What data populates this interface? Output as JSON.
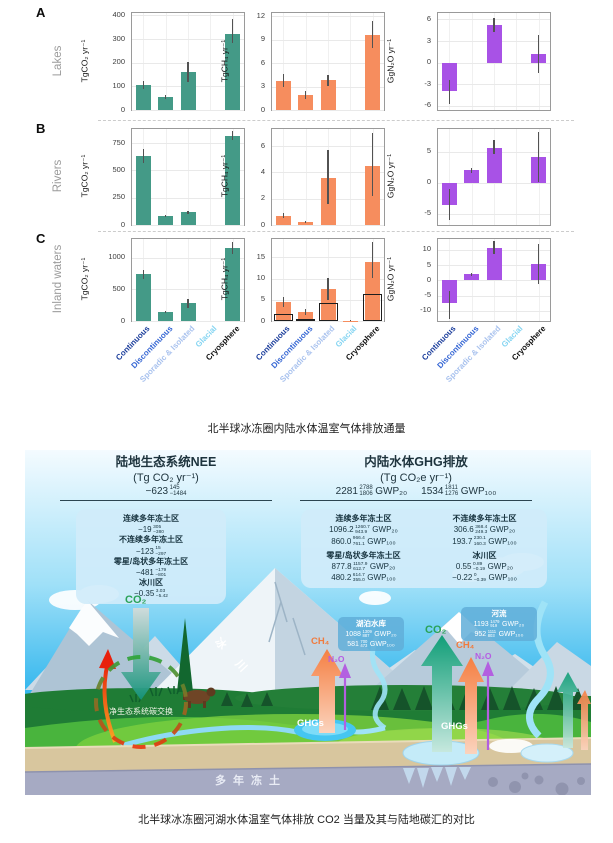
{
  "captions": {
    "top": "北半球冰冻圈内陆水体温室气体排放通量",
    "bottom": "北半球冰冻圈河湖水体温室气体排放 CO2 当量及其与陆地碳汇的对比"
  },
  "rows": [
    {
      "letter": "A",
      "label": "Lakes"
    },
    {
      "letter": "B",
      "label": "Rivers"
    },
    {
      "letter": "C",
      "label": "Inland waters"
    }
  ],
  "categories": {
    "labels": [
      "Continuous",
      "Discontinuous",
      "Sporadic & Isolated",
      "Glacial",
      "Cryosphere"
    ],
    "colors": [
      "#1c3e9c",
      "#3566d4",
      "#a9c2ee",
      "#86d5f2",
      "#111111"
    ]
  },
  "chart_data": [
    {
      "type": "bar",
      "row": "Lakes",
      "gas": "CO₂",
      "ylabel": "TgCO₂ yr⁻¹",
      "color": "#449a87",
      "ylim": [
        0,
        410
      ],
      "yticks": [
        0,
        100,
        200,
        300,
        400
      ],
      "values": [
        105,
        55,
        160,
        0,
        320
      ],
      "err_lo": [
        88,
        46,
        120,
        0,
        285
      ],
      "err_hi": [
        122,
        65,
        205,
        0,
        385
      ]
    },
    {
      "type": "bar",
      "row": "Lakes",
      "gas": "CH₄",
      "ylabel": "TgCH₄ yr⁻¹",
      "color": "#f68d5e",
      "ylim": [
        0,
        12.4
      ],
      "yticks": [
        0,
        3,
        6,
        9,
        12
      ],
      "values": [
        3.7,
        1.9,
        3.8,
        0,
        9.6
      ],
      "err_lo": [
        2.9,
        1.4,
        3.1,
        0,
        7.9
      ],
      "err_hi": [
        4.6,
        2.4,
        4.5,
        0,
        11.4
      ]
    },
    {
      "type": "bar",
      "row": "Lakes",
      "gas": "N₂O",
      "ylabel": "GgN₂O yr⁻¹",
      "color": "#a852e6",
      "ylim": [
        -6.6,
        6.9
      ],
      "yticks": [
        -6,
        -3,
        0,
        3,
        6
      ],
      "values": [
        -4,
        0,
        5.2,
        0,
        1.2
      ],
      "err_lo": [
        -5.8,
        0,
        4.2,
        0,
        -1.5
      ],
      "err_hi": [
        -2.4,
        0,
        6.2,
        0,
        3.9
      ]
    },
    {
      "type": "bar",
      "row": "Rivers",
      "gas": "CO₂",
      "ylabel": "TgCO₂ yr⁻¹",
      "color": "#449a87",
      "ylim": [
        0,
        880
      ],
      "yticks": [
        0,
        250,
        500,
        750
      ],
      "values": [
        630,
        80,
        115,
        0,
        820
      ],
      "err_lo": [
        565,
        70,
        100,
        0,
        775
      ],
      "err_hi": [
        700,
        92,
        132,
        0,
        865
      ]
    },
    {
      "type": "bar",
      "row": "Rivers",
      "gas": "CH₄",
      "ylabel": "TgCH₄ yr⁻¹",
      "color": "#f68d5e",
      "ylim": [
        0,
        7.3
      ],
      "yticks": [
        0,
        2,
        4,
        6
      ],
      "values": [
        0.7,
        0.2,
        3.6,
        0,
        4.5
      ],
      "err_lo": [
        0.5,
        0.12,
        1.6,
        0,
        2.2
      ],
      "err_hi": [
        0.95,
        0.3,
        5.7,
        0,
        7.0
      ]
    },
    {
      "type": "bar",
      "row": "Rivers",
      "gas": "N₂O",
      "ylabel": "GgN₂O yr⁻¹",
      "color": "#a852e6",
      "ylim": [
        -6.8,
        8.7
      ],
      "yticks": [
        -5,
        0,
        5
      ],
      "values": [
        -3.5,
        2,
        5.6,
        0,
        4.2
      ],
      "err_lo": [
        -6,
        1.6,
        4.6,
        0,
        0.2
      ],
      "err_hi": [
        -1,
        2.4,
        6.9,
        0,
        8.2
      ]
    },
    {
      "type": "bar",
      "row": "Inland waters",
      "gas": "CO₂",
      "ylabel": "TgCO₂ yr⁻¹",
      "color": "#449a87",
      "ylim": [
        0,
        1300
      ],
      "yticks": [
        0,
        500,
        1000
      ],
      "values": [
        740,
        140,
        280,
        0,
        1150
      ],
      "err_lo": [
        660,
        120,
        210,
        0,
        1060
      ],
      "err_hi": [
        815,
        160,
        350,
        0,
        1250
      ]
    },
    {
      "type": "bar",
      "row": "Inland waters",
      "gas": "CH₄",
      "ylabel": "TgCH₄ yr⁻¹",
      "color": "#f68d5e",
      "ylim": [
        0,
        19.3
      ],
      "yticks": [
        0,
        5,
        10,
        15
      ],
      "values": [
        4.5,
        2.2,
        7.5,
        0.1,
        14
      ],
      "err_lo": [
        3.3,
        1.5,
        5,
        0,
        10.2
      ],
      "err_hi": [
        5.6,
        2.9,
        10.2,
        0.2,
        18.5
      ],
      "inner": [
        1.7,
        0.5,
        4.3,
        0,
        6.3
      ]
    },
    {
      "type": "bar",
      "row": "Inland waters",
      "gas": "N₂O",
      "ylabel": "GgN₂O yr⁻¹",
      "color": "#a852e6",
      "ylim": [
        -13.3,
        13.6
      ],
      "yticks": [
        -10,
        -5,
        0,
        5,
        10
      ],
      "values": [
        -7.5,
        2,
        10.8,
        0,
        5.3
      ],
      "err_lo": [
        -12.5,
        1.5,
        8.8,
        0,
        -1.2
      ],
      "err_hi": [
        -3.5,
        2.4,
        13,
        0,
        12
      ]
    }
  ],
  "illustration": {
    "left_header": {
      "title": "陆地生态系统NEE",
      "unit": "(Tg CO₂ yr⁻¹)",
      "total": {
        "v": "−623",
        "hi": "145",
        "lo": "−1484"
      }
    },
    "left_box": {
      "entries": [
        {
          "region": "连续多年冻土区",
          "value": {
            "v": "−19",
            "hi": "305",
            "lo": "−380"
          }
        },
        {
          "region": "不连续多年冻土区",
          "value": {
            "v": "−123",
            "hi": "15",
            "lo": "−297"
          }
        },
        {
          "region": "零星/岛状多年冻土区",
          "value": {
            "v": "−481",
            "hi": "−179",
            "lo": "−801"
          }
        },
        {
          "region": "冰川区",
          "value": {
            "v": "−0.35",
            "hi": "3.03",
            "lo": "−5.42"
          }
        }
      ]
    },
    "right_header": {
      "title": "内陆水体GHG排放",
      "unit": "(Tg CO₂e yr⁻¹)",
      "totals": [
        {
          "v": "2281",
          "hi": "2788",
          "lo": "1806",
          "unit": "GWP₂₀"
        },
        {
          "v": "1534",
          "hi": "1811",
          "lo": "1276",
          "unit": "GWP₁₀₀"
        }
      ]
    },
    "right_box": {
      "entries": [
        {
          "region": "连续多年冻土区",
          "values": [
            {
              "v": "1096.2",
              "hi": "1260.7",
              "lo": "943.9",
              "unit": "GWP₂₀"
            },
            {
              "v": "860.0",
              "hi": "966.4",
              "lo": "761.1",
              "unit": "GWP₁₀₀"
            }
          ]
        },
        {
          "region": "不连续多年冻土区",
          "values": [
            {
              "v": "306.6",
              "hi": "368.4",
              "lo": "249.3",
              "unit": "GWP₂₀"
            },
            {
              "v": "193.7",
              "hi": "230.1",
              "lo": "160.3",
              "unit": "GWP₁₀₀"
            }
          ]
        },
        {
          "region": "零星/岛状多年冻土区",
          "values": [
            {
              "v": "877.8",
              "hi": "1157.9",
              "lo": "612.7",
              "unit": "GWP₂₀"
            },
            {
              "v": "480.2",
              "hi": "614.7",
              "lo": "355.0",
              "unit": "GWP₁₀₀"
            }
          ]
        },
        {
          "region": "冰川区",
          "values": [
            {
              "v": "0.55",
              "hi": "0.89",
              "lo": "−0.19",
              "unit": "GWP₂₀"
            },
            {
              "v": "−0.22",
              "hi": "0",
              "lo": "−0.39",
              "unit": "GWP₁₀₀"
            }
          ]
        }
      ]
    },
    "lake_box": {
      "title": "湖泊水库",
      "values": [
        {
          "v": "1088",
          "hi": "1309",
          "lo": "887",
          "unit": "GWP₂₀"
        },
        {
          "v": "581",
          "hi": "700",
          "lo": "473",
          "unit": "GWP₁₀₀"
        }
      ]
    },
    "river_box": {
      "title": "河流",
      "values": [
        {
          "v": "1193",
          "hi": "1479",
          "lo": "919",
          "unit": "GWP₂₀"
        },
        {
          "v": "952",
          "hi": "1111",
          "lo": "803",
          "unit": "GWP₁₀₀"
        }
      ]
    },
    "gas_labels": {
      "co2": "CO₂",
      "ch4": "CH₄",
      "n2o": "N₂O"
    },
    "scene_labels": {
      "glacier": "冰 川",
      "nee_circle": "净生态系统碳交换",
      "ghgs": "GHGs",
      "permafrost": "多年冻土"
    },
    "colors": {
      "co2": "#29a257",
      "ch4": "#f07b3e",
      "n2o": "#b55ce4",
      "nee_arrow": "#13937a"
    }
  }
}
